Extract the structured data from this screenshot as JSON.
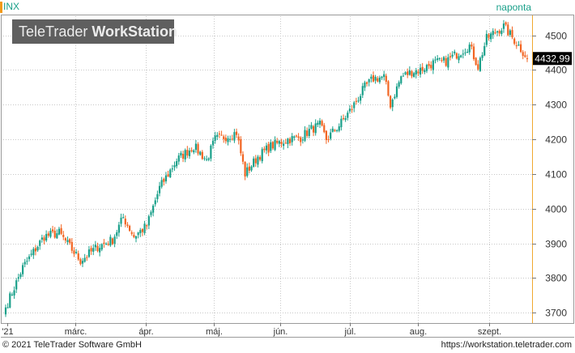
{
  "header": {
    "symbol": "INX",
    "period": "naponta",
    "watermark_prefix": "TeleTrader ",
    "watermark_bold": "WorkStation"
  },
  "footer": {
    "copyright": "© 2021  TeleTrader Software GmbH",
    "url": "https://workstation.teletrader.com"
  },
  "colors": {
    "up": "#1aa08a",
    "down": "#f26522",
    "grid": "#c8c8c8",
    "axis_line": "#f0a830",
    "last_price_bg": "#000000"
  },
  "chart_data": {
    "type": "candlestick",
    "title": "",
    "xlabel": "",
    "ylabel": "",
    "ylim": [
      3670,
      4555
    ],
    "y_ticks": [
      "3700",
      "3800",
      "3900",
      "4000",
      "4100",
      "4200",
      "4300",
      "4400",
      "4500"
    ],
    "x_ticks": [
      "'21",
      "márc.",
      "ápr.",
      "máj.",
      "jún.",
      "júl.",
      "aug.",
      "szept."
    ],
    "last_price": 4432.99,
    "last_price_label": "4432,99",
    "grid": true
  }
}
